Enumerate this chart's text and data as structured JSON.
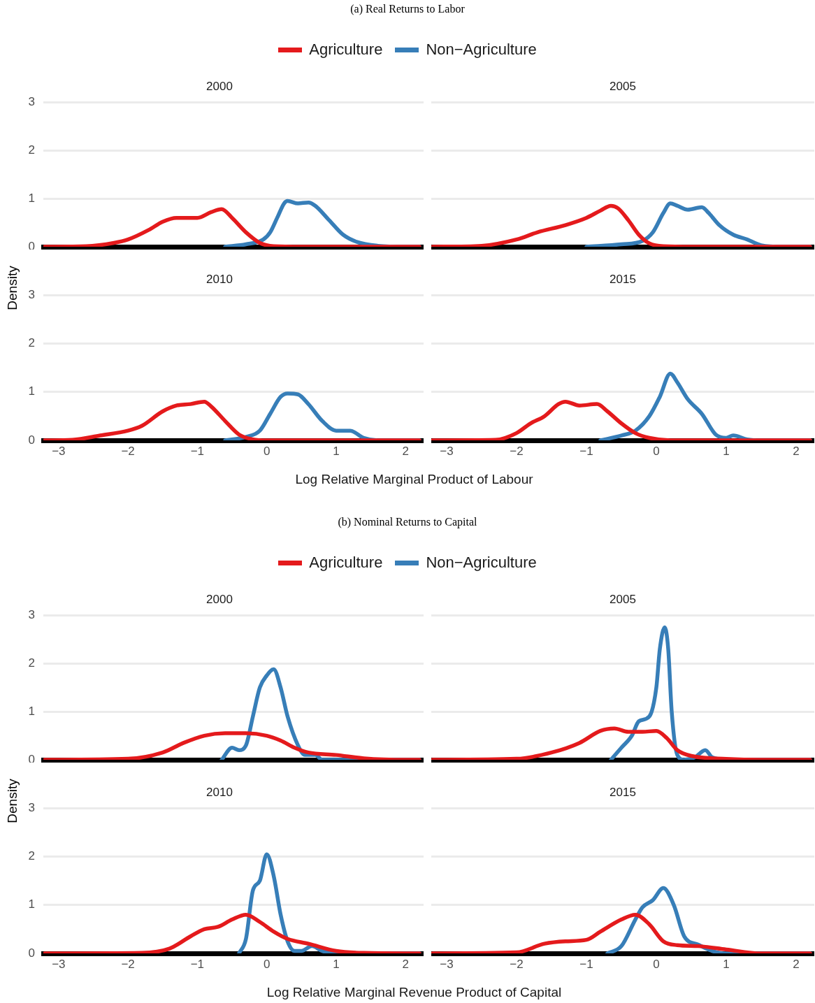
{
  "chart_data": [
    {
      "type": "line",
      "title": "2000",
      "annotations": [
        "(a) Real Returns to Labor"
      ],
      "legend": "top",
      "grid": "y",
      "tick_labels": "y",
      "xlim": [
        -3.22,
        2.26
      ],
      "ylim": [
        0,
        3
      ],
      "yticks": [
        0,
        1,
        2,
        3
      ],
      "series": [
        {
          "name": "Agriculture",
          "color": "#e41a1c",
          "x": [
            -3.2,
            -2.6,
            -2.2,
            -2.0,
            -1.7,
            -1.5,
            -1.3,
            -1.0,
            -0.8,
            -0.65,
            -0.5,
            -0.3,
            -0.1,
            0.1,
            0.5,
            2.2
          ],
          "values": [
            0,
            0.01,
            0.08,
            0.15,
            0.35,
            0.52,
            0.6,
            0.6,
            0.72,
            0.78,
            0.6,
            0.3,
            0.08,
            0.01,
            0,
            0
          ]
        },
        {
          "name": "Non−Agriculture",
          "color": "#377eb8",
          "x": [
            -0.6,
            -0.3,
            -0.05,
            0.05,
            0.15,
            0.25,
            0.3,
            0.45,
            0.6,
            0.7,
            0.9,
            1.1,
            1.3,
            1.6,
            2.0,
            2.2
          ],
          "values": [
            0,
            0.05,
            0.15,
            0.3,
            0.6,
            0.9,
            0.95,
            0.9,
            0.92,
            0.85,
            0.55,
            0.25,
            0.1,
            0.02,
            0,
            0
          ]
        }
      ]
    },
    {
      "type": "line",
      "title": "2005",
      "grid": "y",
      "tick_labels": false,
      "xlim": [
        -3.22,
        2.26
      ],
      "ylim": [
        0,
        3
      ],
      "yticks": [
        0,
        1,
        2,
        3
      ],
      "series": [
        {
          "color": "#e41a1c",
          "x": [
            -3.2,
            -2.5,
            -2.0,
            -1.7,
            -1.3,
            -1.0,
            -0.8,
            -0.65,
            -0.55,
            -0.4,
            -0.25,
            -0.1,
            0.1,
            0.5,
            2.2
          ],
          "values": [
            0,
            0.02,
            0.15,
            0.3,
            0.45,
            0.6,
            0.75,
            0.85,
            0.8,
            0.55,
            0.25,
            0.07,
            0.01,
            0,
            0
          ]
        },
        {
          "color": "#377eb8",
          "x": [
            -1.0,
            -0.5,
            -0.2,
            -0.05,
            0.1,
            0.2,
            0.3,
            0.45,
            0.65,
            0.75,
            0.9,
            1.1,
            1.3,
            1.5,
            1.8,
            2.2
          ],
          "values": [
            0,
            0.05,
            0.12,
            0.3,
            0.7,
            0.9,
            0.85,
            0.77,
            0.82,
            0.7,
            0.45,
            0.25,
            0.15,
            0.03,
            0,
            0
          ]
        }
      ]
    },
    {
      "type": "line",
      "title": "2010",
      "xlabel": "Log Relative Marginal Product of Labour",
      "ylabel": "Density",
      "grid": "y",
      "xlim": [
        -3.22,
        2.26
      ],
      "ylim": [
        0,
        3
      ],
      "yticks": [
        0,
        1,
        2,
        3
      ],
      "xticks": [
        {
          "value": -3,
          "label": "−3"
        },
        {
          "value": -2,
          "label": "−2"
        },
        {
          "value": -1,
          "label": "−1"
        },
        0,
        1,
        2
      ],
      "series": [
        {
          "color": "#e41a1c",
          "x": [
            -3.2,
            -2.8,
            -2.4,
            -2.0,
            -1.8,
            -1.5,
            -1.3,
            -1.1,
            -0.9,
            -0.8,
            -0.6,
            -0.4,
            -0.2,
            0,
            2.2
          ],
          "values": [
            0,
            0.01,
            0.1,
            0.2,
            0.3,
            0.6,
            0.72,
            0.75,
            0.8,
            0.7,
            0.4,
            0.12,
            0.02,
            0,
            0
          ]
        },
        {
          "color": "#377eb8",
          "x": [
            -0.6,
            -0.3,
            -0.1,
            0.05,
            0.2,
            0.3,
            0.45,
            0.6,
            0.8,
            1.0,
            1.2,
            1.4,
            1.6,
            2.2
          ],
          "values": [
            0,
            0.07,
            0.2,
            0.55,
            0.9,
            0.97,
            0.95,
            0.75,
            0.4,
            0.2,
            0.2,
            0.05,
            0,
            0
          ]
        }
      ]
    },
    {
      "type": "line",
      "title": "2015",
      "grid": "y",
      "tick_labels": "x",
      "xlim": [
        -3.22,
        2.26
      ],
      "ylim": [
        0,
        3
      ],
      "yticks": [
        0,
        1,
        2,
        3
      ],
      "xticks": [
        {
          "value": -3,
          "label": "−3"
        },
        {
          "value": -2,
          "label": "−2"
        },
        {
          "value": -1,
          "label": "−1"
        },
        0,
        1,
        2
      ],
      "series": [
        {
          "color": "#e41a1c",
          "x": [
            -3.2,
            -2.3,
            -2.0,
            -1.8,
            -1.6,
            -1.4,
            -1.3,
            -1.1,
            -0.85,
            -0.7,
            -0.5,
            -0.3,
            -0.1,
            0.2,
            2.2
          ],
          "values": [
            0,
            0.01,
            0.15,
            0.35,
            0.5,
            0.75,
            0.8,
            0.72,
            0.75,
            0.6,
            0.35,
            0.15,
            0.05,
            0,
            0
          ]
        },
        {
          "color": "#377eb8",
          "x": [
            -0.8,
            -0.5,
            -0.3,
            -0.1,
            0.05,
            0.2,
            0.3,
            0.45,
            0.65,
            0.85,
            1.0,
            1.1,
            1.3,
            1.5,
            2.2
          ],
          "values": [
            0,
            0.1,
            0.2,
            0.5,
            0.9,
            1.38,
            1.2,
            0.85,
            0.55,
            0.12,
            0.05,
            0.1,
            0.02,
            0,
            0
          ]
        }
      ]
    },
    {
      "type": "line",
      "title": "2000",
      "annotations": [
        "(b) Nominal Returns to Capital"
      ],
      "legend": "top",
      "grid": "y",
      "tick_labels": "y",
      "xlim": [
        -3.22,
        2.26
      ],
      "ylim": [
        0,
        3
      ],
      "yticks": [
        0,
        1,
        2,
        3
      ],
      "series": [
        {
          "name": "Agriculture",
          "color": "#e41a1c",
          "x": [
            -3.2,
            -2.0,
            -1.5,
            -1.2,
            -0.9,
            -0.6,
            -0.3,
            0,
            0.2,
            0.4,
            0.6,
            1.0,
            1.4,
            2.0,
            2.2
          ],
          "values": [
            0,
            0.02,
            0.15,
            0.35,
            0.5,
            0.55,
            0.55,
            0.5,
            0.4,
            0.25,
            0.15,
            0.1,
            0.03,
            0,
            0
          ]
        },
        {
          "name": "Non−Agriculture",
          "color": "#377eb8",
          "x": [
            -0.65,
            -0.5,
            -0.4,
            -0.3,
            -0.2,
            -0.1,
            0,
            0.1,
            0.2,
            0.3,
            0.45,
            0.55,
            0.7,
            0.8,
            2.2
          ],
          "values": [
            0,
            0.25,
            0.2,
            0.3,
            0.9,
            1.5,
            1.75,
            1.88,
            1.5,
            0.9,
            0.3,
            0.1,
            0.1,
            0,
            0
          ]
        }
      ]
    },
    {
      "type": "line",
      "title": "2005",
      "grid": "y",
      "tick_labels": false,
      "xlim": [
        -3.22,
        2.26
      ],
      "ylim": [
        0,
        3
      ],
      "yticks": [
        0,
        1,
        2,
        3
      ],
      "series": [
        {
          "color": "#e41a1c",
          "x": [
            -3.2,
            -2.0,
            -1.5,
            -1.1,
            -0.8,
            -0.6,
            -0.4,
            -0.2,
            0,
            0.15,
            0.3,
            0.5,
            1.0,
            1.5,
            2.2
          ],
          "values": [
            0,
            0.02,
            0.15,
            0.35,
            0.6,
            0.65,
            0.58,
            0.58,
            0.6,
            0.45,
            0.2,
            0.08,
            0.02,
            0,
            0
          ]
        },
        {
          "color": "#377eb8",
          "x": [
            -0.65,
            -0.5,
            -0.35,
            -0.25,
            -0.1,
            0,
            0.05,
            0.12,
            0.17,
            0.22,
            0.3,
            0.4,
            0.55,
            0.7,
            0.8,
            1.0,
            2.2
          ],
          "values": [
            0,
            0.25,
            0.5,
            0.8,
            0.9,
            1.5,
            2.3,
            2.75,
            2.3,
            1.0,
            0.1,
            0,
            0.05,
            0.2,
            0.05,
            0,
            0
          ]
        }
      ]
    },
    {
      "type": "line",
      "title": "2010",
      "xlabel": "Log Relative Marginal Revenue Product of Capital",
      "ylabel": "Density",
      "grid": "y",
      "xlim": [
        -3.22,
        2.26
      ],
      "ylim": [
        0,
        3
      ],
      "yticks": [
        0,
        1,
        2,
        3
      ],
      "xticks": [
        {
          "value": -3,
          "label": "−3"
        },
        {
          "value": -2,
          "label": "−2"
        },
        {
          "value": -1,
          "label": "−1"
        },
        0,
        1,
        2
      ],
      "series": [
        {
          "color": "#e41a1c",
          "x": [
            -3.2,
            -1.8,
            -1.4,
            -1.1,
            -0.9,
            -0.7,
            -0.5,
            -0.3,
            -0.1,
            0.1,
            0.3,
            0.6,
            1.0,
            1.4,
            2.2
          ],
          "values": [
            0,
            0.01,
            0.1,
            0.35,
            0.5,
            0.55,
            0.7,
            0.8,
            0.65,
            0.45,
            0.3,
            0.2,
            0.05,
            0.01,
            0
          ]
        },
        {
          "color": "#377eb8",
          "x": [
            -0.4,
            -0.3,
            -0.2,
            -0.1,
            0,
            0.1,
            0.2,
            0.3,
            0.4,
            0.5,
            0.65,
            0.8,
            1.0,
            2.2
          ],
          "values": [
            0,
            0.3,
            1.3,
            1.5,
            2.05,
            1.6,
            0.8,
            0.25,
            0.05,
            0.05,
            0.15,
            0.05,
            0,
            0
          ]
        }
      ]
    },
    {
      "type": "line",
      "title": "2015",
      "grid": "y",
      "tick_labels": "x",
      "xlim": [
        -3.22,
        2.26
      ],
      "ylim": [
        0,
        3
      ],
      "yticks": [
        0,
        1,
        2,
        3
      ],
      "xticks": [
        {
          "value": -3,
          "label": "−3"
        },
        {
          "value": -2,
          "label": "−2"
        },
        {
          "value": -1,
          "label": "−1"
        },
        0,
        1,
        2
      ],
      "series": [
        {
          "color": "#e41a1c",
          "x": [
            -3.2,
            -2.0,
            -1.6,
            -1.3,
            -1.0,
            -0.8,
            -0.5,
            -0.3,
            -0.1,
            0.1,
            0.3,
            0.6,
            1.0,
            1.5,
            2.2
          ],
          "values": [
            0,
            0.02,
            0.2,
            0.25,
            0.28,
            0.45,
            0.7,
            0.8,
            0.6,
            0.25,
            0.17,
            0.15,
            0.08,
            0,
            0
          ]
        },
        {
          "color": "#377eb8",
          "x": [
            -0.7,
            -0.5,
            -0.3,
            -0.2,
            -0.05,
            0.1,
            0.25,
            0.4,
            0.6,
            0.8,
            1.0,
            2.2
          ],
          "values": [
            0,
            0.15,
            0.7,
            0.95,
            1.1,
            1.35,
            1.0,
            0.35,
            0.18,
            0.05,
            0,
            0
          ]
        }
      ]
    }
  ]
}
